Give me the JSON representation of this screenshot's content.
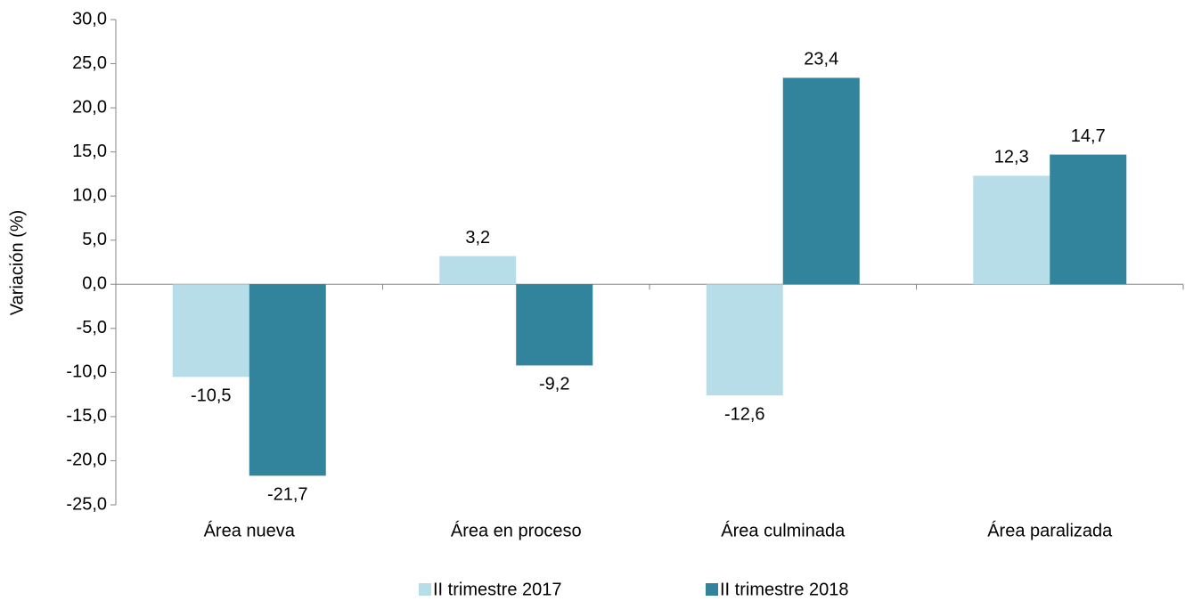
{
  "chart_data": {
    "type": "bar",
    "y_label": "Variación (%)",
    "categories": [
      "Área nueva",
      "Área en proceso",
      "Área culminada",
      "Área paralizada"
    ],
    "series": [
      {
        "name": "II trimestre 2017",
        "color": "#b7dde8",
        "values": [
          -10.5,
          3.2,
          -12.6,
          12.3
        ],
        "value_labels": [
          "-10,5",
          "3,2",
          "-12,6",
          "12,3"
        ]
      },
      {
        "name": "II trimestre 2018",
        "color": "#31849b",
        "values": [
          -21.7,
          -9.2,
          23.4,
          14.7
        ],
        "value_labels": [
          "-21,7",
          "-9,2",
          "23,4",
          "14,7"
        ]
      }
    ],
    "ylim": [
      -25,
      30
    ],
    "yticks": [
      {
        "value": -25,
        "label": "-25,0"
      },
      {
        "value": -20,
        "label": "-20,0"
      },
      {
        "value": -15,
        "label": "-15,0"
      },
      {
        "value": -10,
        "label": "-10,0"
      },
      {
        "value": -5,
        "label": "-5,0"
      },
      {
        "value": 0,
        "label": "0,0"
      },
      {
        "value": 5,
        "label": "5,0"
      },
      {
        "value": 10,
        "label": "10,0"
      },
      {
        "value": 15,
        "label": "15,0"
      },
      {
        "value": 20,
        "label": "20,0"
      },
      {
        "value": 25,
        "label": "25,0"
      },
      {
        "value": 30,
        "label": "30,0"
      }
    ],
    "grid": false,
    "legend": "bottom"
  }
}
